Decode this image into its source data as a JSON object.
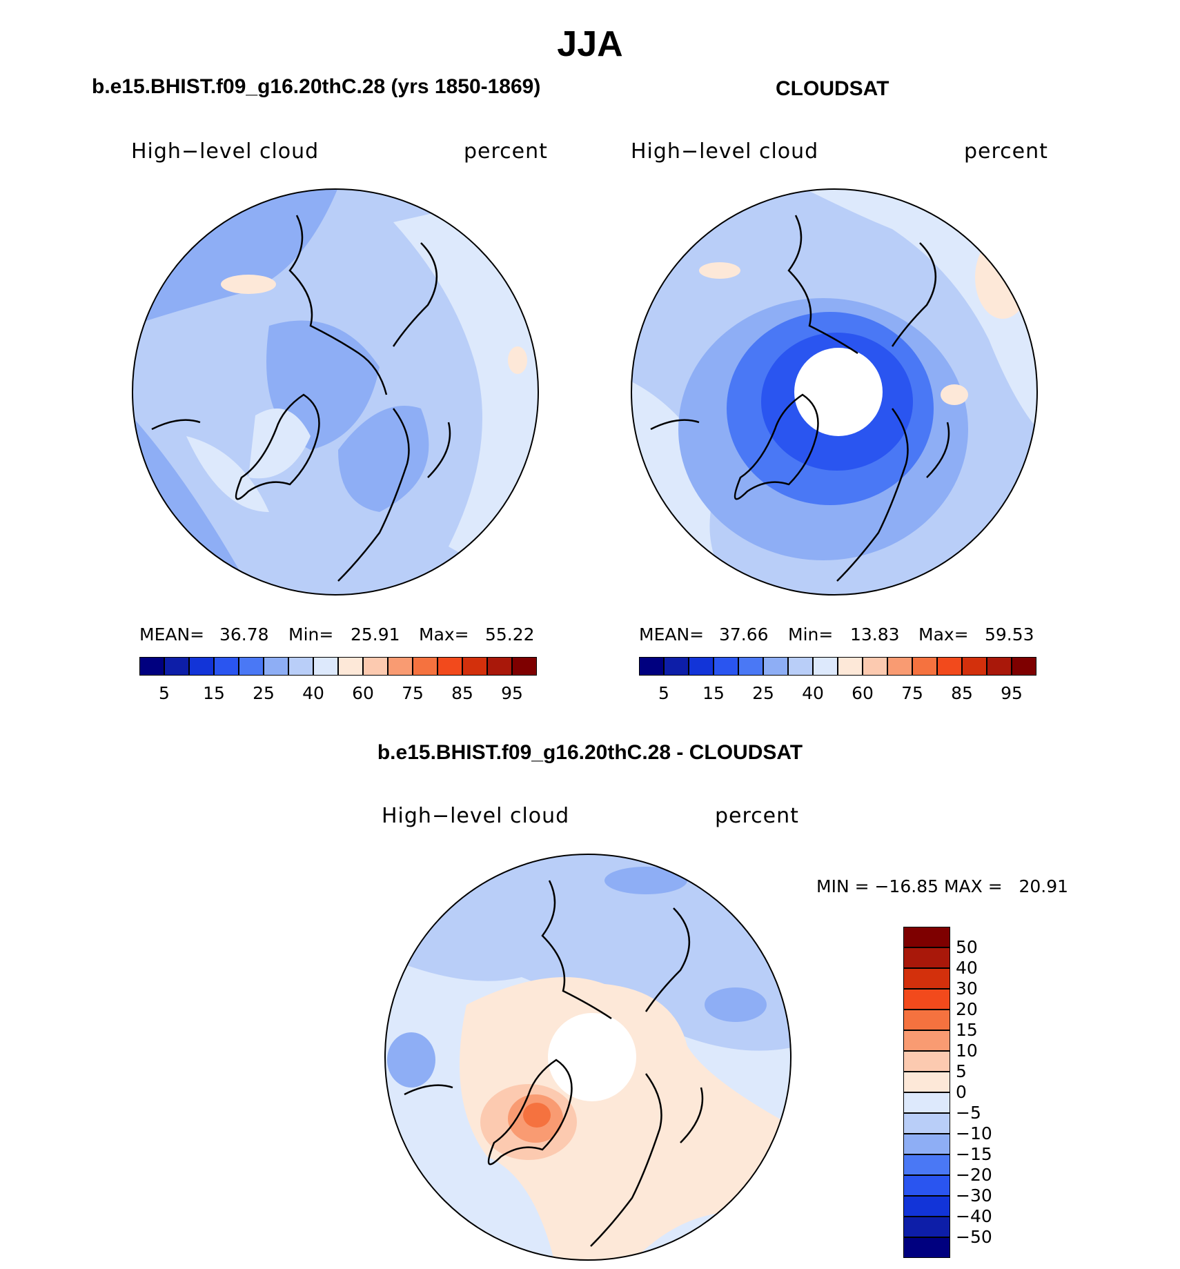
{
  "title": "JJA",
  "colors": {
    "abs_palette": [
      "#00007f",
      "#0d1ea8",
      "#1234d8",
      "#2a55f0",
      "#4a78f5",
      "#8eaef5",
      "#b9cef8",
      "#dde9fc",
      "#fde8d8",
      "#fccab0",
      "#f99b72",
      "#f5723f",
      "#f24a1c",
      "#d3300c",
      "#a9180a",
      "#7e0000"
    ],
    "diff_palette": [
      "#00007f",
      "#0d1ea8",
      "#1234d8",
      "#2a55f0",
      "#4a78f5",
      "#8eaef5",
      "#b9cef8",
      "#dde9fc",
      "#fde8d8",
      "#fccab0",
      "#f99b72",
      "#f5723f",
      "#f24a1c",
      "#d3300c",
      "#a9180a",
      "#7e0000"
    ]
  },
  "panel_model": {
    "heading": "b.e15.BHIST.f09_g16.20thC.28 (yrs 1850-1869)",
    "field_label": "High−level cloud",
    "units_label": "percent",
    "stats": {
      "mean_label": "MEAN=",
      "mean": "36.78",
      "min_label": "Min=",
      "min": "25.91",
      "max_label": "Max=",
      "max": "55.22"
    },
    "colorbar_ticks": [
      "5",
      "15",
      "25",
      "40",
      "60",
      "75",
      "85",
      "95"
    ]
  },
  "panel_obs": {
    "heading": "CLOUDSAT",
    "field_label": "High−level cloud",
    "units_label": "percent",
    "stats": {
      "mean_label": "MEAN=",
      "mean": "37.66",
      "min_label": "Min=",
      "min": "13.83",
      "max_label": "Max=",
      "max": "59.53"
    },
    "colorbar_ticks": [
      "5",
      "15",
      "25",
      "40",
      "60",
      "75",
      "85",
      "95"
    ]
  },
  "panel_diff": {
    "heading": "b.e15.BHIST.f09_g16.20thC.28 - CLOUDSAT",
    "field_label": "High−level cloud",
    "units_label": "percent",
    "minmax_text": "MIN = −16.85 MAX =   20.91",
    "colorbar_ticks": [
      "50",
      "40",
      "30",
      "20",
      "15",
      "10",
      "5",
      "0",
      "−5",
      "−10",
      "−15",
      "−20",
      "−30",
      "−40",
      "−50"
    ]
  }
}
